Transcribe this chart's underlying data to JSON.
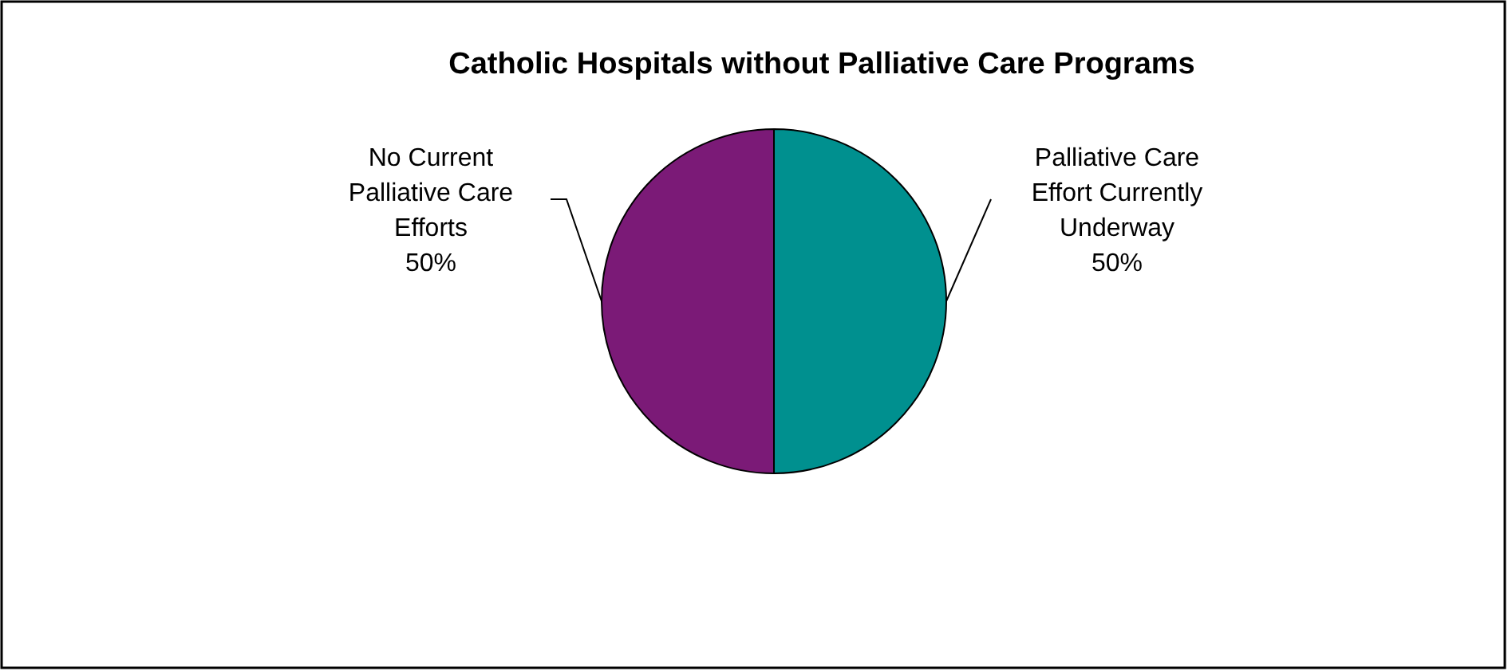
{
  "chart_data": {
    "type": "pie",
    "title": "Catholic Hospitals without Palliative Care Programs",
    "categories": [
      "Palliative Care Effort Currently Underway",
      "No Current Palliative Care Efforts"
    ],
    "values": [
      50,
      50
    ],
    "colors": [
      "#00908f",
      "#7b1a77"
    ],
    "value_labels": [
      "50%",
      "50%"
    ]
  }
}
